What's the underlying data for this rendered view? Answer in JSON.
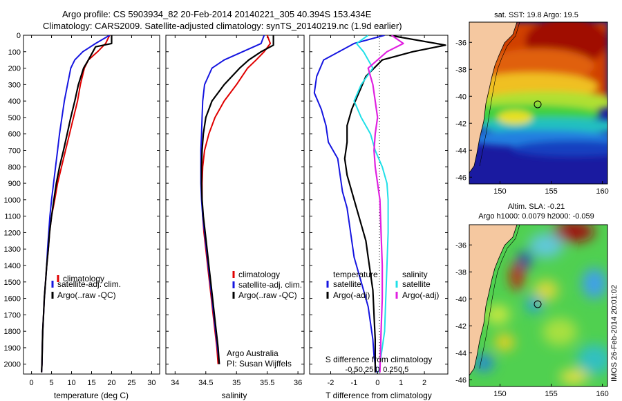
{
  "header": {
    "line1": "Argo profile: CS 5903934_82 20-Feb-2014 20140221_305 40.394S 153.434E",
    "line2": "Climatology: CARS2009. Satellite-adjusted climatology: synTS_20140219.nc (1.9d earlier)"
  },
  "side_label": "IMOS 26-Feb-2014 20:01:02",
  "colors": {
    "climatology": "#e00000",
    "satellite": "#1515e0",
    "argo": "#000000",
    "sal_sat": "#20e0e8",
    "sal_argo": "#e020e0"
  },
  "chart_data": [
    {
      "type": "line",
      "panel": "temperature",
      "xlabel": "temperature (deg C)",
      "xlim": [
        -2,
        32
      ],
      "ylim": [
        0,
        2060
      ],
      "xticks": [
        0,
        5,
        10,
        15,
        20,
        25,
        30
      ],
      "yticks": [
        0,
        100,
        200,
        300,
        400,
        500,
        600,
        700,
        800,
        900,
        1000,
        1100,
        1200,
        1300,
        1400,
        1500,
        1600,
        1700,
        1800,
        1900,
        2000
      ],
      "legend": [
        "climatology",
        "satellite-adj. clim.",
        "Argo(..raw -QC)"
      ],
      "series": [
        {
          "name": "climatology",
          "color_key": "climatology",
          "x": [
            19.5,
            18.5,
            16.5,
            14.2,
            13.2,
            12.2,
            11.5,
            10.5,
            9.5,
            8.5,
            7.5,
            6.5,
            5.8,
            5.0,
            4.5,
            4.2,
            3.8,
            3.5,
            3.2,
            3.0,
            2.8,
            2.7,
            2.6,
            2.5
          ],
          "y": [
            0,
            50,
            100,
            150,
            200,
            300,
            400,
            500,
            600,
            700,
            800,
            900,
            1000,
            1100,
            1200,
            1300,
            1400,
            1500,
            1600,
            1700,
            1800,
            1900,
            2000,
            2050
          ]
        },
        {
          "name": "satellite-adj. clim.",
          "color_key": "satellite",
          "x": [
            19.5,
            16.0,
            12.8,
            10.8,
            9.8,
            9.0,
            8.2,
            7.6,
            7.0,
            6.5,
            6.0,
            5.5,
            5.0,
            4.6,
            4.3,
            4.0,
            3.8,
            3.5,
            3.2,
            3.0,
            2.8,
            2.7,
            2.6,
            2.5
          ],
          "y": [
            0,
            50,
            100,
            150,
            200,
            300,
            400,
            500,
            600,
            700,
            800,
            900,
            1000,
            1100,
            1200,
            1300,
            1400,
            1500,
            1600,
            1700,
            1800,
            1900,
            2000,
            2050
          ]
        },
        {
          "name": "Argo",
          "color_key": "argo",
          "x": [
            20.0,
            20.0,
            16.0,
            14.2,
            13.0,
            11.7,
            10.8,
            9.8,
            8.9,
            8.0,
            7.0,
            6.2,
            5.6,
            5.0,
            4.5,
            4.2,
            3.8,
            3.5,
            3.2,
            3.0,
            2.8,
            2.7,
            2.6,
            2.5
          ],
          "y": [
            0,
            50,
            70,
            150,
            200,
            300,
            400,
            500,
            600,
            700,
            800,
            900,
            1000,
            1100,
            1200,
            1300,
            1400,
            1500,
            1600,
            1700,
            1800,
            1900,
            2000,
            2050
          ]
        }
      ]
    },
    {
      "type": "line",
      "panel": "salinity",
      "xlabel": "salinity",
      "xlim": [
        33.85,
        36.1
      ],
      "ylim": [
        0,
        2060
      ],
      "xticks": [
        34,
        34.5,
        35,
        35.5,
        36
      ],
      "legend": [
        "climatology",
        "satellite-adj. clim.",
        "Argo(..raw -QC)"
      ],
      "annotation": [
        "Argo Australia",
        "PI: Susan Wijffels"
      ],
      "series": [
        {
          "name": "climatology",
          "color_key": "climatology",
          "x": [
            35.5,
            35.55,
            35.45,
            35.32,
            35.18,
            35.0,
            34.8,
            34.65,
            34.55,
            34.48,
            34.45,
            34.44,
            34.44,
            34.45,
            34.47,
            34.5,
            34.53,
            34.56,
            34.59,
            34.62,
            34.65,
            34.68,
            34.7
          ],
          "y": [
            0,
            50,
            100,
            150,
            200,
            300,
            400,
            500,
            600,
            700,
            800,
            900,
            1000,
            1100,
            1200,
            1300,
            1400,
            1500,
            1600,
            1700,
            1800,
            1900,
            2000
          ]
        },
        {
          "name": "satellite-adj. clim.",
          "color_key": "satellite",
          "x": [
            35.45,
            35.4,
            35.1,
            34.8,
            34.6,
            34.48,
            34.45,
            34.44,
            34.43,
            34.42,
            34.42,
            34.42,
            34.43,
            34.45,
            34.48,
            34.51,
            34.54,
            34.57,
            34.6,
            34.63,
            34.66,
            34.69,
            34.72
          ],
          "y": [
            0,
            50,
            100,
            150,
            200,
            300,
            400,
            500,
            600,
            700,
            800,
            900,
            1000,
            1100,
            1200,
            1300,
            1400,
            1500,
            1600,
            1700,
            1800,
            1900,
            2000
          ]
        },
        {
          "name": "Argo",
          "color_key": "argo",
          "x": [
            35.6,
            35.6,
            35.4,
            35.2,
            35.05,
            34.8,
            34.6,
            34.5,
            34.46,
            34.44,
            34.43,
            34.43,
            34.44,
            34.46,
            34.49,
            34.52,
            34.55,
            34.58,
            34.61,
            34.64,
            34.67,
            34.7,
            34.72
          ],
          "y": [
            0,
            60,
            100,
            150,
            200,
            300,
            400,
            500,
            600,
            700,
            800,
            900,
            1000,
            1100,
            1200,
            1300,
            1400,
            1500,
            1600,
            1700,
            1800,
            1900,
            2000
          ]
        }
      ]
    },
    {
      "type": "line",
      "panel": "differences",
      "xlabel": "T difference from climatology",
      "xlabel_top": "S difference from climatology",
      "xlim": [
        -2.9,
        3.0
      ],
      "ylim": [
        0,
        2060
      ],
      "xticks": [
        -2,
        -1,
        0,
        1,
        2
      ],
      "xticks_s": [
        -0.5,
        -0.25,
        0,
        0.25,
        0.5
      ],
      "legend_t": [
        "temperature",
        "satellite",
        "Argo(-adj)"
      ],
      "legend_s": [
        "salinity",
        "satellite",
        "Argo(-adj)"
      ],
      "series": [
        {
          "name": "temperature satellite",
          "color_key": "satellite",
          "x": [
            0.3,
            -1.0,
            -2.3,
            -2.6,
            -2.7,
            -2.4,
            -2.2,
            -2.1,
            -1.7,
            -1.6,
            -1.5,
            -1.3,
            -1.2,
            -1.1,
            -1.0,
            -0.8,
            -0.6,
            -0.4,
            -0.3,
            -0.2,
            -0.15,
            -0.1,
            -0.05
          ],
          "y": [
            0,
            50,
            150,
            250,
            350,
            450,
            550,
            650,
            750,
            850,
            950,
            1050,
            1150,
            1250,
            1350,
            1450,
            1550,
            1650,
            1750,
            1850,
            1950,
            2000,
            2050
          ]
        },
        {
          "name": "temperature Argo",
          "color_key": "argo",
          "x": [
            0.5,
            2.9,
            1.5,
            0.2,
            -0.5,
            -0.8,
            -1.1,
            -1.3,
            -1.3,
            -1.4,
            -1.3,
            -1.1,
            -0.9,
            -0.7,
            -0.5,
            -0.4,
            -0.3,
            -0.2,
            -0.15,
            -0.1,
            -0.1
          ],
          "y": [
            0,
            60,
            100,
            150,
            250,
            350,
            450,
            550,
            650,
            750,
            850,
            950,
            1050,
            1150,
            1250,
            1350,
            1450,
            1550,
            1700,
            1850,
            2050
          ]
        },
        {
          "name": "salinity satellite",
          "color_key": "sal_sat",
          "x": [
            -0.4,
            -0.9,
            -0.6,
            -0.2,
            -0.7,
            -1.0,
            -0.7,
            -0.3,
            -0.1,
            0.2,
            0.4,
            0.45,
            0.45,
            0.4,
            0.35,
            0.3,
            0.2,
            0.1,
            0.05
          ],
          "y": [
            0,
            50,
            100,
            200,
            300,
            400,
            500,
            600,
            700,
            800,
            900,
            1000,
            1200,
            1400,
            1600,
            1800,
            1900,
            2000,
            2050
          ]
        },
        {
          "name": "salinity Argo",
          "color_key": "sal_argo",
          "x": [
            0.6,
            1.1,
            0.4,
            -0.4,
            -0.2,
            -0.1,
            0.0,
            -0.1,
            -0.15,
            -0.1,
            0.0,
            0.1,
            0.15,
            0.2,
            0.2,
            0.15,
            0.1
          ],
          "y": [
            0,
            50,
            100,
            200,
            300,
            400,
            500,
            600,
            700,
            800,
            900,
            1000,
            1200,
            1400,
            1600,
            1800,
            2050
          ]
        }
      ]
    },
    {
      "type": "heatmap",
      "panel": "sst_map",
      "title": "sat. SST: 19.8 Argo: 19.5",
      "xticks": [
        150,
        155,
        160
      ],
      "yticks": [
        -36,
        -38,
        -40,
        -42,
        -44,
        -46
      ],
      "xlim": [
        147,
        160.5
      ],
      "ylim": [
        -46.5,
        -34.5
      ]
    },
    {
      "type": "heatmap",
      "panel": "sla_map",
      "title_line1": "Altim. SLA: -0.21",
      "title_line2": "Argo h1000: 0.0079 h2000: -0.059",
      "xticks": [
        150,
        155,
        160
      ],
      "yticks": [
        -36,
        -38,
        -40,
        -42,
        -44,
        -46
      ],
      "xlim": [
        147,
        160.5
      ],
      "ylim": [
        -46.5,
        -34.5
      ]
    }
  ]
}
